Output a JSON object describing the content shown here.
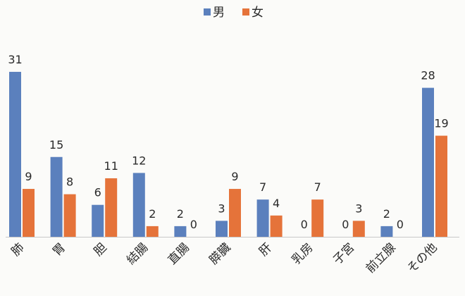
{
  "chart_data": {
    "type": "bar",
    "title": "",
    "xlabel": "",
    "ylabel": "",
    "ylim": [
      0,
      32
    ],
    "grid": false,
    "legend_position": "top-center",
    "categories": [
      "肺",
      "胃",
      "胆",
      "結腸",
      "直腸",
      "膵臓",
      "肝",
      "乳房",
      "子宮",
      "前立腺",
      "その他"
    ],
    "series": [
      {
        "name": "男",
        "color": "#5b80bd",
        "values": [
          31,
          15,
          6,
          12,
          2,
          3,
          7,
          0,
          0,
          2,
          28
        ]
      },
      {
        "name": "女",
        "color": "#e5733a",
        "values": [
          9,
          8,
          11,
          2,
          0,
          9,
          4,
          7,
          3,
          0,
          19
        ]
      }
    ]
  }
}
